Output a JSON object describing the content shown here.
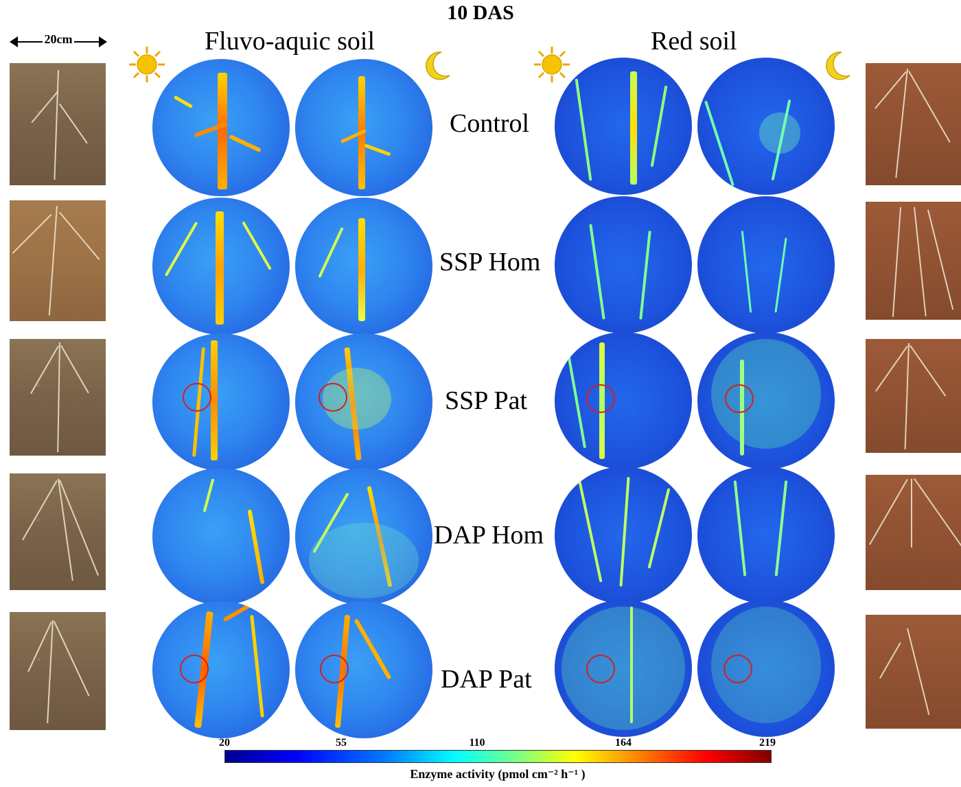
{
  "figure": {
    "title": "10 DAS",
    "scale_label": "20cm",
    "soil_labels": {
      "left": "Fluvo-aquic soil",
      "right": "Red soil"
    },
    "icons": {
      "day": "sun-icon",
      "night": "moon-icon"
    },
    "rows": [
      {
        "label": "Control",
        "has_ring": false
      },
      {
        "label": "SSP Hom",
        "has_ring": false
      },
      {
        "label": "SSP Pat",
        "has_ring": true
      },
      {
        "label": "DAP Hom",
        "has_ring": false
      },
      {
        "label": "DAP Pat",
        "has_ring": true
      }
    ],
    "colorbar": {
      "ticks": [
        "20",
        "55",
        "110",
        "164",
        "219"
      ],
      "title": "Enzyme activity (pmol cm⁻² h⁻¹ )"
    },
    "colors": {
      "ring": "#d42020",
      "disc_blue": "#2266e8",
      "sun": "#f5c400",
      "moon": "#f2d020"
    }
  }
}
